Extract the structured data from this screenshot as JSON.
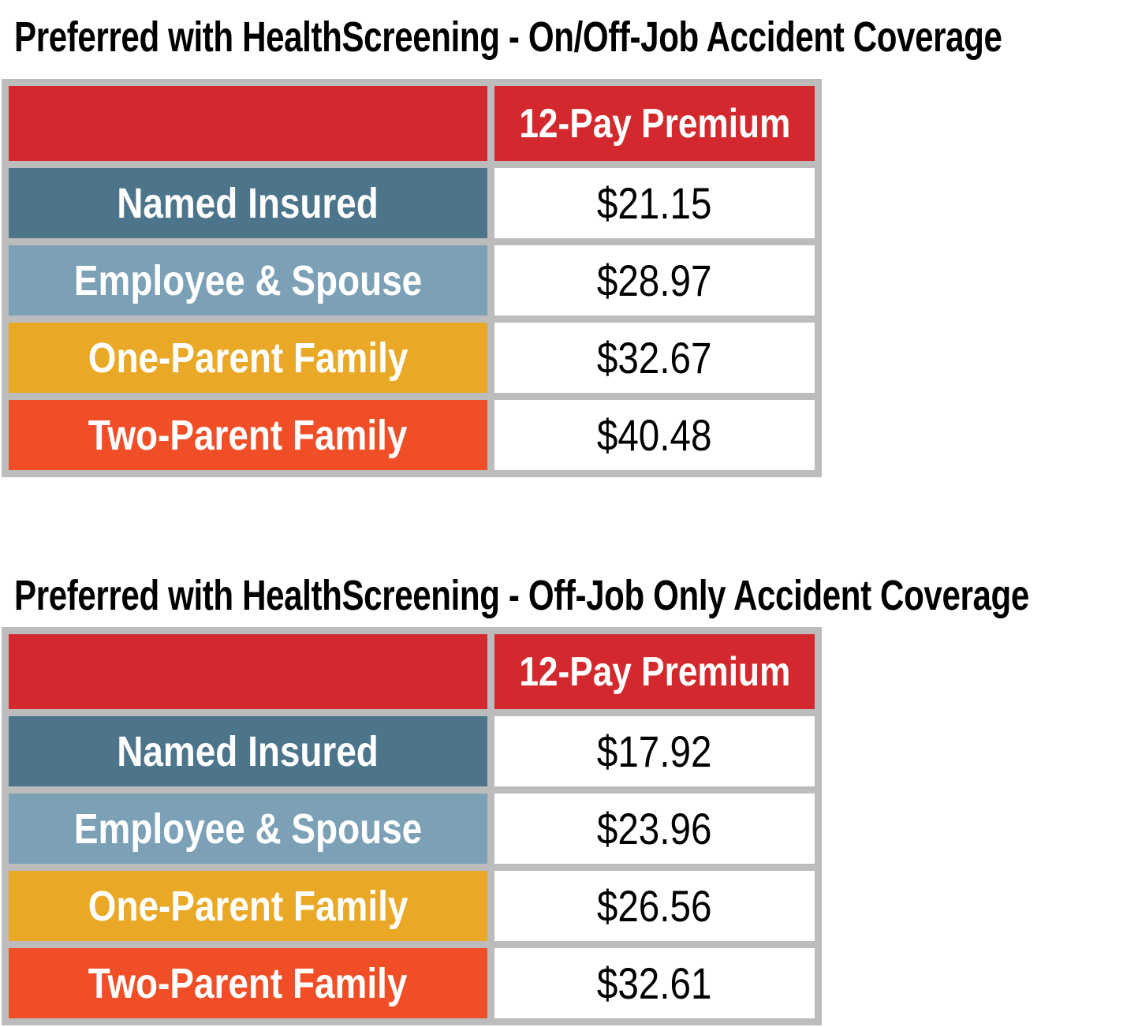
{
  "colors": {
    "red": "#D3292E",
    "dark_blue": "#4C748B",
    "light_blue": "#7CA0B5",
    "gold": "#E9A825",
    "orange": "#F04E27",
    "border_gray": "#BCBCBC",
    "header_text": "#FFFFFF",
    "value_text": "#000000"
  },
  "tables": [
    {
      "title": "Preferred with HealthScreening - On/Off-Job Accident Coverage",
      "header": {
        "label_col": "",
        "premium_col": "12-Pay Premium"
      },
      "rows": [
        {
          "label": "Named Insured",
          "value": "$21.15",
          "color": "#4C748B"
        },
        {
          "label": "Employee & Spouse",
          "value": "$28.97",
          "color": "#7CA0B5"
        },
        {
          "label": "One-Parent Family",
          "value": "$32.67",
          "color": "#E9A825"
        },
        {
          "label": "Two-Parent Family",
          "value": "$40.48",
          "color": "#F04E27"
        }
      ]
    },
    {
      "title": "Preferred with HealthScreening - Off-Job Only Accident Coverage",
      "header": {
        "label_col": "",
        "premium_col": "12-Pay Premium"
      },
      "rows": [
        {
          "label": "Named Insured",
          "value": "$17.92",
          "color": "#4C748B"
        },
        {
          "label": "Employee & Spouse",
          "value": "$23.96",
          "color": "#7CA0B5"
        },
        {
          "label": "One-Parent Family",
          "value": "$26.56",
          "color": "#E9A825"
        },
        {
          "label": "Two-Parent Family",
          "value": "$32.61",
          "color": "#F04E27"
        }
      ]
    }
  ]
}
